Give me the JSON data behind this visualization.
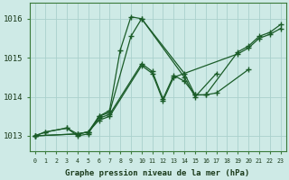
{
  "xlabel": "Graphe pression niveau de la mer (hPa)",
  "bg_color": "#ceeae6",
  "grid_color": "#aad0cc",
  "line_color": "#1a5c28",
  "xlim": [
    -0.5,
    23.5
  ],
  "ylim": [
    1012.6,
    1016.4
  ],
  "yticks": [
    1013,
    1014,
    1015,
    1016
  ],
  "xticks": [
    0,
    1,
    2,
    3,
    4,
    5,
    6,
    7,
    8,
    9,
    10,
    11,
    12,
    13,
    14,
    15,
    16,
    17,
    18,
    19,
    20,
    21,
    22,
    23
  ],
  "series": [
    {
      "x": [
        0,
        1,
        3,
        4,
        5,
        6,
        7,
        9,
        10,
        14,
        15,
        16,
        17,
        20
      ],
      "y": [
        1013.0,
        1013.1,
        1013.2,
        1013.0,
        1013.05,
        1013.5,
        1013.6,
        1015.55,
        1016.0,
        1014.6,
        1014.05,
        1014.05,
        1014.1,
        1014.7
      ]
    },
    {
      "x": [
        0,
        1,
        3,
        4,
        5,
        6,
        7,
        8,
        9,
        10,
        14,
        15,
        17
      ],
      "y": [
        1013.0,
        1013.1,
        1013.2,
        1013.05,
        1013.1,
        1013.5,
        1013.65,
        1015.2,
        1016.05,
        1016.0,
        1014.5,
        1014.0,
        1014.6
      ]
    },
    {
      "x": [
        0,
        4,
        5,
        6,
        7,
        10,
        11,
        12,
        13,
        14,
        15,
        16,
        19,
        20,
        21,
        22,
        23
      ],
      "y": [
        1013.0,
        1013.05,
        1013.1,
        1013.45,
        1013.55,
        1014.85,
        1014.65,
        1013.95,
        1014.55,
        1014.4,
        1014.05,
        1014.05,
        1015.15,
        1015.3,
        1015.55,
        1015.65,
        1015.85
      ]
    },
    {
      "x": [
        0,
        4,
        5,
        6,
        7,
        10,
        11,
        12,
        13,
        19,
        20,
        21,
        22,
        23
      ],
      "y": [
        1013.0,
        1013.05,
        1013.1,
        1013.4,
        1013.5,
        1014.8,
        1014.6,
        1013.9,
        1014.5,
        1015.1,
        1015.25,
        1015.5,
        1015.6,
        1015.75
      ]
    }
  ]
}
